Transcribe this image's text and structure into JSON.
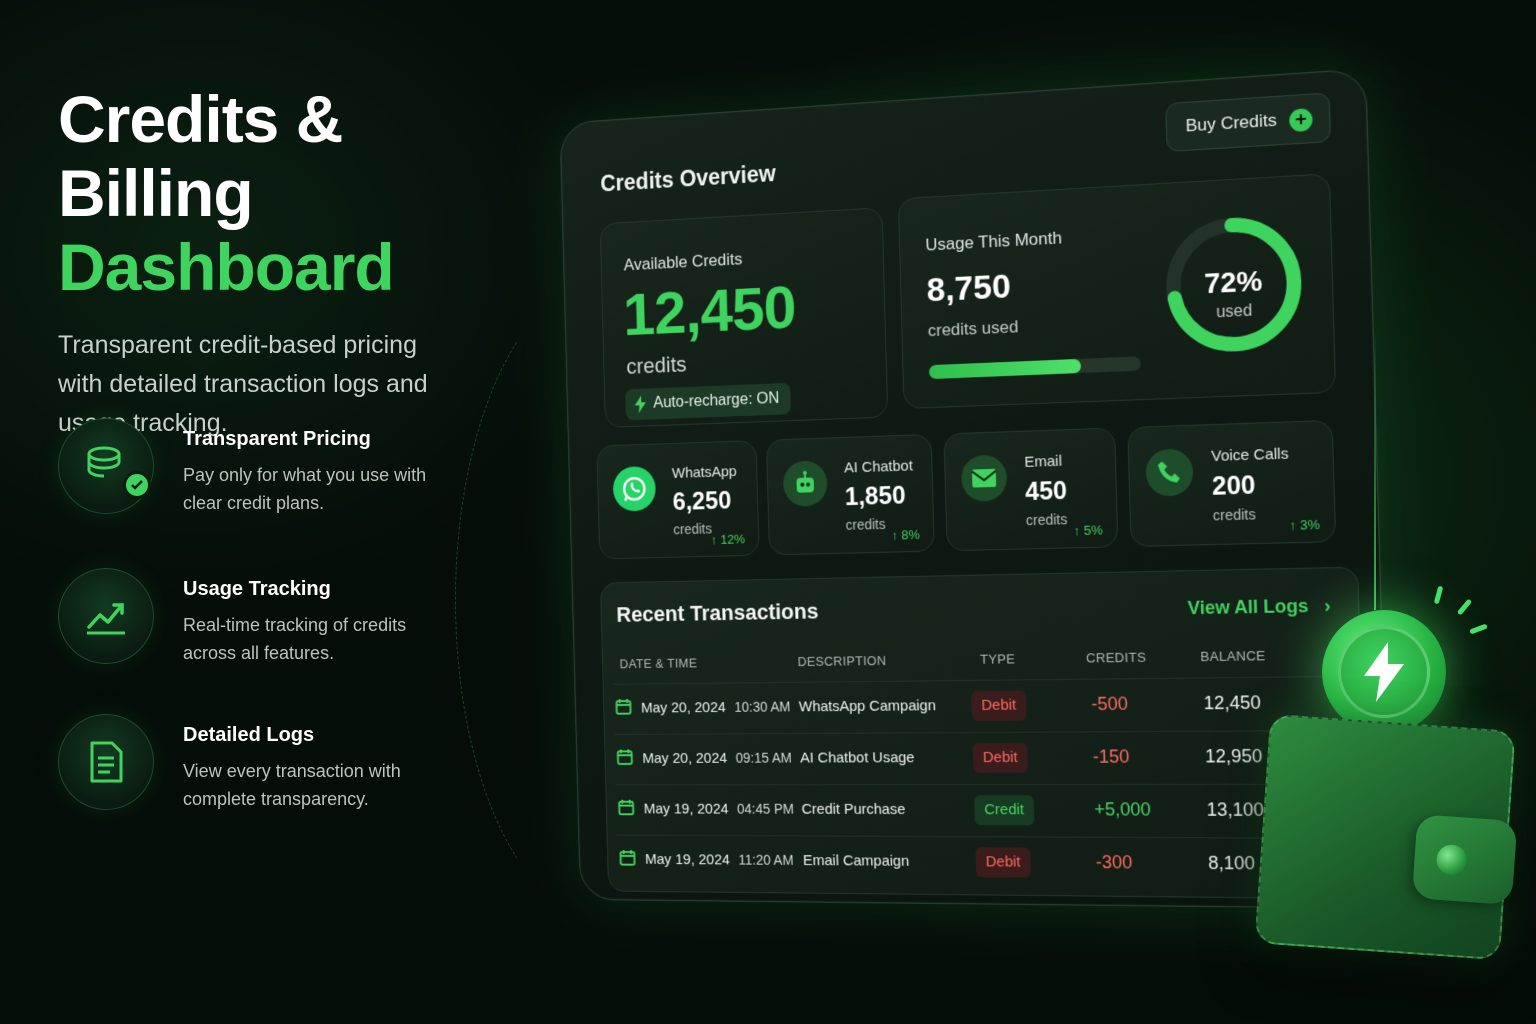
{
  "hero": {
    "title": "Credits & Billing",
    "accent": "Dashboard",
    "subtitle": "Transparent credit-based pricing with detailed transaction logs and usage tracking."
  },
  "features": [
    {
      "icon": "coins-check-icon",
      "title": "Transparent Pricing",
      "desc": "Pay only for what you use with clear credit plans."
    },
    {
      "icon": "trend-up-icon",
      "title": "Usage Tracking",
      "desc": "Real-time tracking of credits across all features."
    },
    {
      "icon": "document-icon",
      "title": "Detailed Logs",
      "desc": "View every transaction with complete transparency."
    }
  ],
  "dashboard": {
    "title": "Credits Overview",
    "buy_label": "Buy Credits",
    "available": {
      "label": "Available Credits",
      "value": "12,450",
      "unit": "credits",
      "auto_recharge": "Auto-recharge: ON"
    },
    "usage": {
      "label": "Usage This Month",
      "value": "8,750",
      "unit": "credits used",
      "percent": 72,
      "percent_label": "72%",
      "used_label": "used"
    },
    "stats": [
      {
        "name": "WhatsApp",
        "value": "6,250",
        "unit": "credits",
        "trend": "↑ 12%",
        "icon": "whatsapp-icon"
      },
      {
        "name": "AI Chatbot",
        "value": "1,850",
        "unit": "credits",
        "trend": "↑ 8%",
        "icon": "robot-icon"
      },
      {
        "name": "Email",
        "value": "450",
        "unit": "credits",
        "trend": "↑ 5%",
        "icon": "mail-icon"
      },
      {
        "name": "Voice Calls",
        "value": "200",
        "unit": "credits",
        "trend": "↑ 3%",
        "icon": "phone-icon"
      }
    ],
    "transactions": {
      "title": "Recent Transactions",
      "view_all": "View All Logs",
      "headers": [
        "DATE & TIME",
        "DESCRIPTION",
        "TYPE",
        "CREDITS",
        "BALANCE"
      ],
      "rows": [
        {
          "date": "May 20, 2024",
          "time": "10:30 AM",
          "desc": "WhatsApp Campaign",
          "type": "Debit",
          "credits": "-500",
          "balance": "12,450"
        },
        {
          "date": "May 20, 2024",
          "time": "09:15 AM",
          "desc": "AI Chatbot Usage",
          "type": "Debit",
          "credits": "-150",
          "balance": "12,950"
        },
        {
          "date": "May 19, 2024",
          "time": "04:45 PM",
          "desc": "Credit Purchase",
          "type": "Credit",
          "credits": "+5,000",
          "balance": "13,100"
        },
        {
          "date": "May 19, 2024",
          "time": "11:20 AM",
          "desc": "Email Campaign",
          "type": "Debit",
          "credits": "-300",
          "balance": "8,100"
        }
      ]
    }
  },
  "colors": {
    "accent": "#3fd45e",
    "debit": "#ff6b5e",
    "background": "#050d08"
  }
}
